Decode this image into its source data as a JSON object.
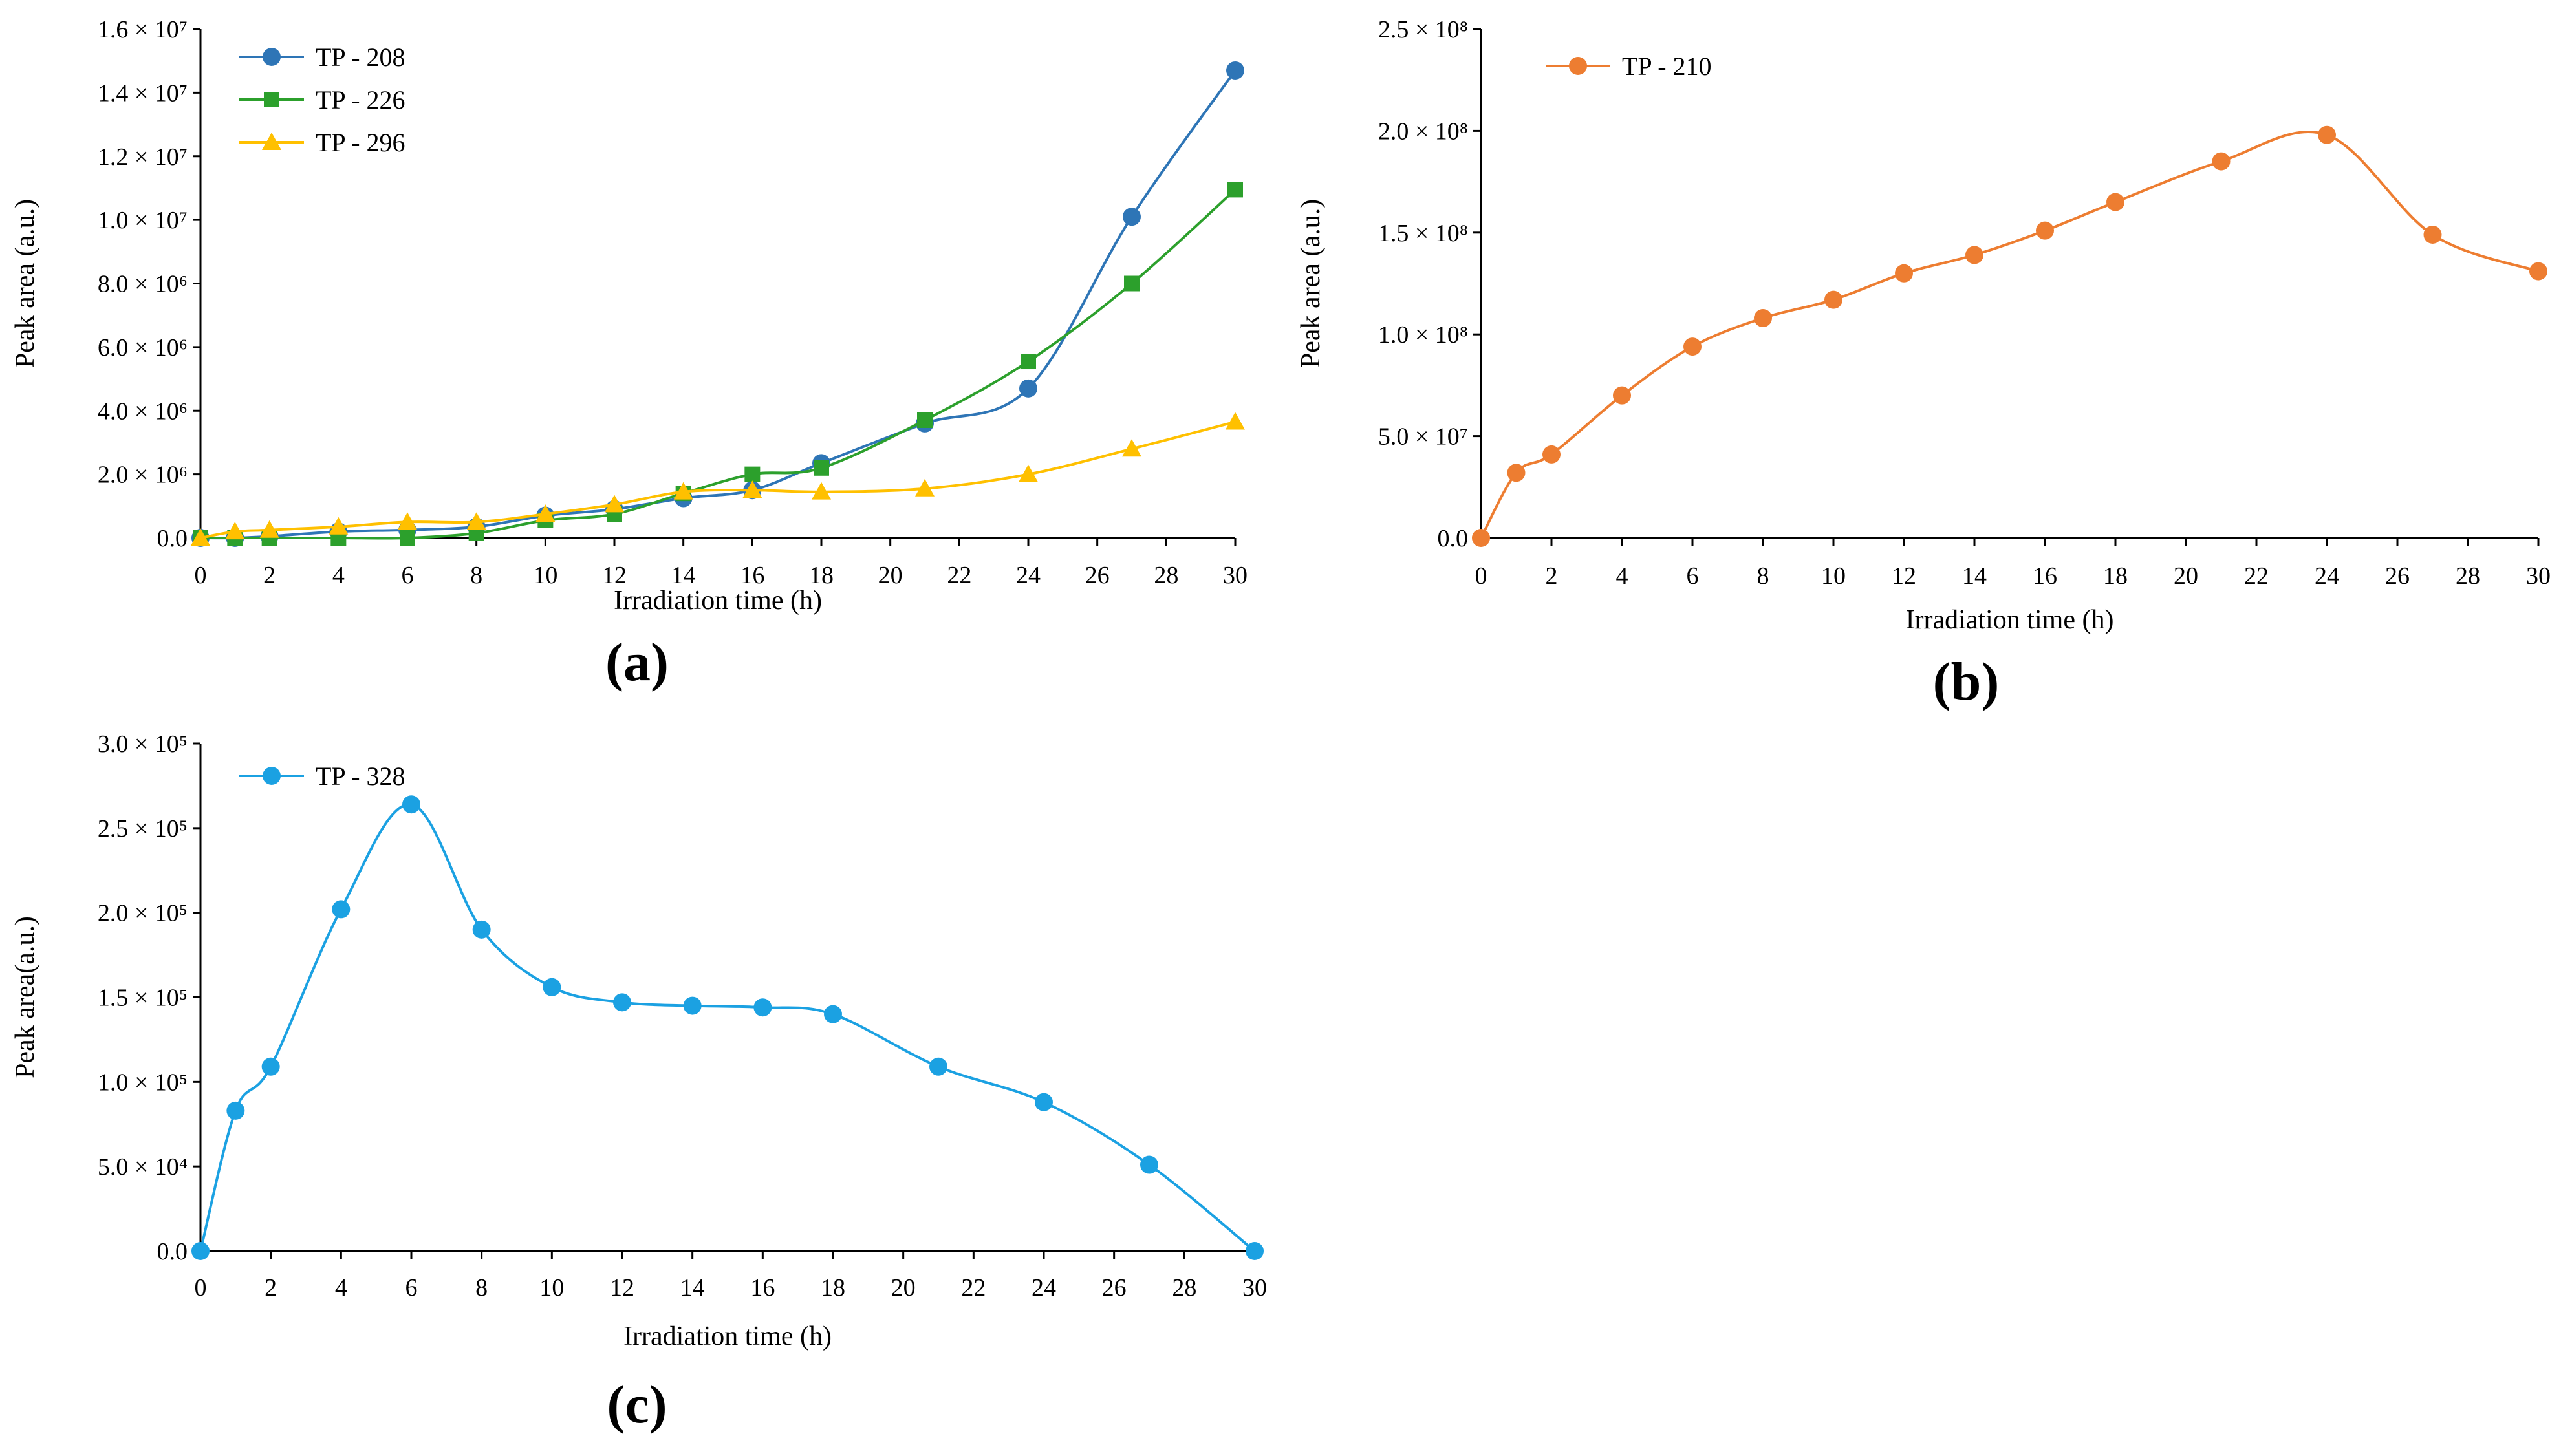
{
  "chart_data": [
    {
      "type": "line",
      "panel_label": "(a)",
      "xlabel": "Irradiation time (h)",
      "ylabel": "Peak area (a.u.)",
      "xlim": [
        0,
        30
      ],
      "ylim": [
        0,
        16000000
      ],
      "xticks": [
        "0",
        "2",
        "4",
        "6",
        "8",
        "10",
        "12",
        "14",
        "16",
        "18",
        "20",
        "22",
        "24",
        "26",
        "28",
        "30"
      ],
      "yticks": [
        {
          "value": 0,
          "label": "0.0"
        },
        {
          "value": 2000000,
          "label": "2.0 × 10⁶"
        },
        {
          "value": 4000000,
          "label": "4.0 × 10⁶"
        },
        {
          "value": 6000000,
          "label": "6.0 × 10⁶"
        },
        {
          "value": 8000000,
          "label": "8.0 × 10⁶"
        },
        {
          "value": 10000000,
          "label": "1.0 × 10⁷"
        },
        {
          "value": 12000000,
          "label": "1.2 × 10⁷"
        },
        {
          "value": 14000000,
          "label": "1.4 × 10⁷"
        },
        {
          "value": 16000000,
          "label": "1.6 × 10⁷"
        }
      ],
      "legend_position": "top-left",
      "x": [
        0,
        1,
        2,
        4,
        6,
        8,
        10,
        12,
        14,
        16,
        18,
        21,
        24,
        27,
        30
      ],
      "series": [
        {
          "name": "TP - 208",
          "color": "#2e75b6",
          "marker": "circle",
          "values": [
            0,
            0,
            50000,
            200000,
            250000,
            350000,
            700000,
            900000,
            1250000,
            1500000,
            2350000,
            3600000,
            4700000,
            10100000,
            14700000
          ]
        },
        {
          "name": "TP - 226",
          "color": "#2ca02c",
          "marker": "square",
          "values": [
            0,
            0,
            0,
            0,
            0,
            150000,
            550000,
            750000,
            1400000,
            2000000,
            2200000,
            3700000,
            5550000,
            8000000,
            10950000
          ]
        },
        {
          "name": "TP - 296",
          "color": "#ffc000",
          "marker": "triangle",
          "values": [
            0,
            200000,
            250000,
            350000,
            500000,
            500000,
            750000,
            1050000,
            1450000,
            1500000,
            1450000,
            1550000,
            2000000,
            2800000,
            3650000
          ]
        }
      ]
    },
    {
      "type": "line",
      "panel_label": "(b)",
      "xlabel": "Irradiation time (h)",
      "ylabel": "Peak area (a.u.)",
      "xlim": [
        0,
        30
      ],
      "ylim": [
        0,
        250000000
      ],
      "xticks": [
        "0",
        "2",
        "4",
        "6",
        "8",
        "10",
        "12",
        "14",
        "16",
        "18",
        "20",
        "22",
        "24",
        "26",
        "28",
        "30"
      ],
      "yticks": [
        {
          "value": 0,
          "label": "0.0"
        },
        {
          "value": 50000000,
          "label": "5.0 × 10⁷"
        },
        {
          "value": 100000000,
          "label": "1.0 × 10⁸"
        },
        {
          "value": 150000000,
          "label": "1.5 × 10⁸"
        },
        {
          "value": 200000000,
          "label": "2.0 × 10⁸"
        },
        {
          "value": 250000000,
          "label": "2.5 × 10⁸"
        }
      ],
      "legend_position": "top-left",
      "x": [
        0,
        1,
        2,
        4,
        6,
        8,
        10,
        12,
        14,
        16,
        18,
        21,
        24,
        27,
        30
      ],
      "series": [
        {
          "name": "TP - 210",
          "color": "#ed7d31",
          "marker": "circle",
          "values": [
            0,
            32000000,
            41000000,
            70000000,
            94000000,
            108000000,
            117000000,
            130000000,
            139000000,
            151000000,
            165000000,
            185000000,
            198000000,
            149000000,
            131000000
          ]
        }
      ]
    },
    {
      "type": "line",
      "panel_label": "(c)",
      "xlabel": "Irradiation time (h)",
      "ylabel": "Peak area(a.u.)",
      "xlim": [
        0,
        30
      ],
      "ylim": [
        0,
        300000
      ],
      "xticks": [
        "0",
        "2",
        "4",
        "6",
        "8",
        "10",
        "12",
        "14",
        "16",
        "18",
        "20",
        "22",
        "24",
        "26",
        "28",
        "30"
      ],
      "yticks": [
        {
          "value": 0,
          "label": "0.0"
        },
        {
          "value": 50000,
          "label": "5.0 × 10⁴"
        },
        {
          "value": 100000,
          "label": "1.0 × 10⁵"
        },
        {
          "value": 150000,
          "label": "1.5 × 10⁵"
        },
        {
          "value": 200000,
          "label": "2.0 × 10⁵"
        },
        {
          "value": 250000,
          "label": "2.5 × 10⁵"
        },
        {
          "value": 300000,
          "label": "3.0 × 10⁵"
        }
      ],
      "legend_position": "top-left",
      "x": [
        0,
        1,
        2,
        4,
        6,
        8,
        10,
        12,
        14,
        16,
        18,
        21,
        24,
        27,
        30
      ],
      "series": [
        {
          "name": "TP - 328",
          "color": "#1ba1e2",
          "marker": "circle",
          "values": [
            0,
            83000,
            109000,
            202000,
            264000,
            190000,
            156000,
            147000,
            145000,
            144000,
            140000,
            109000,
            88000,
            51000,
            0
          ]
        }
      ]
    }
  ]
}
